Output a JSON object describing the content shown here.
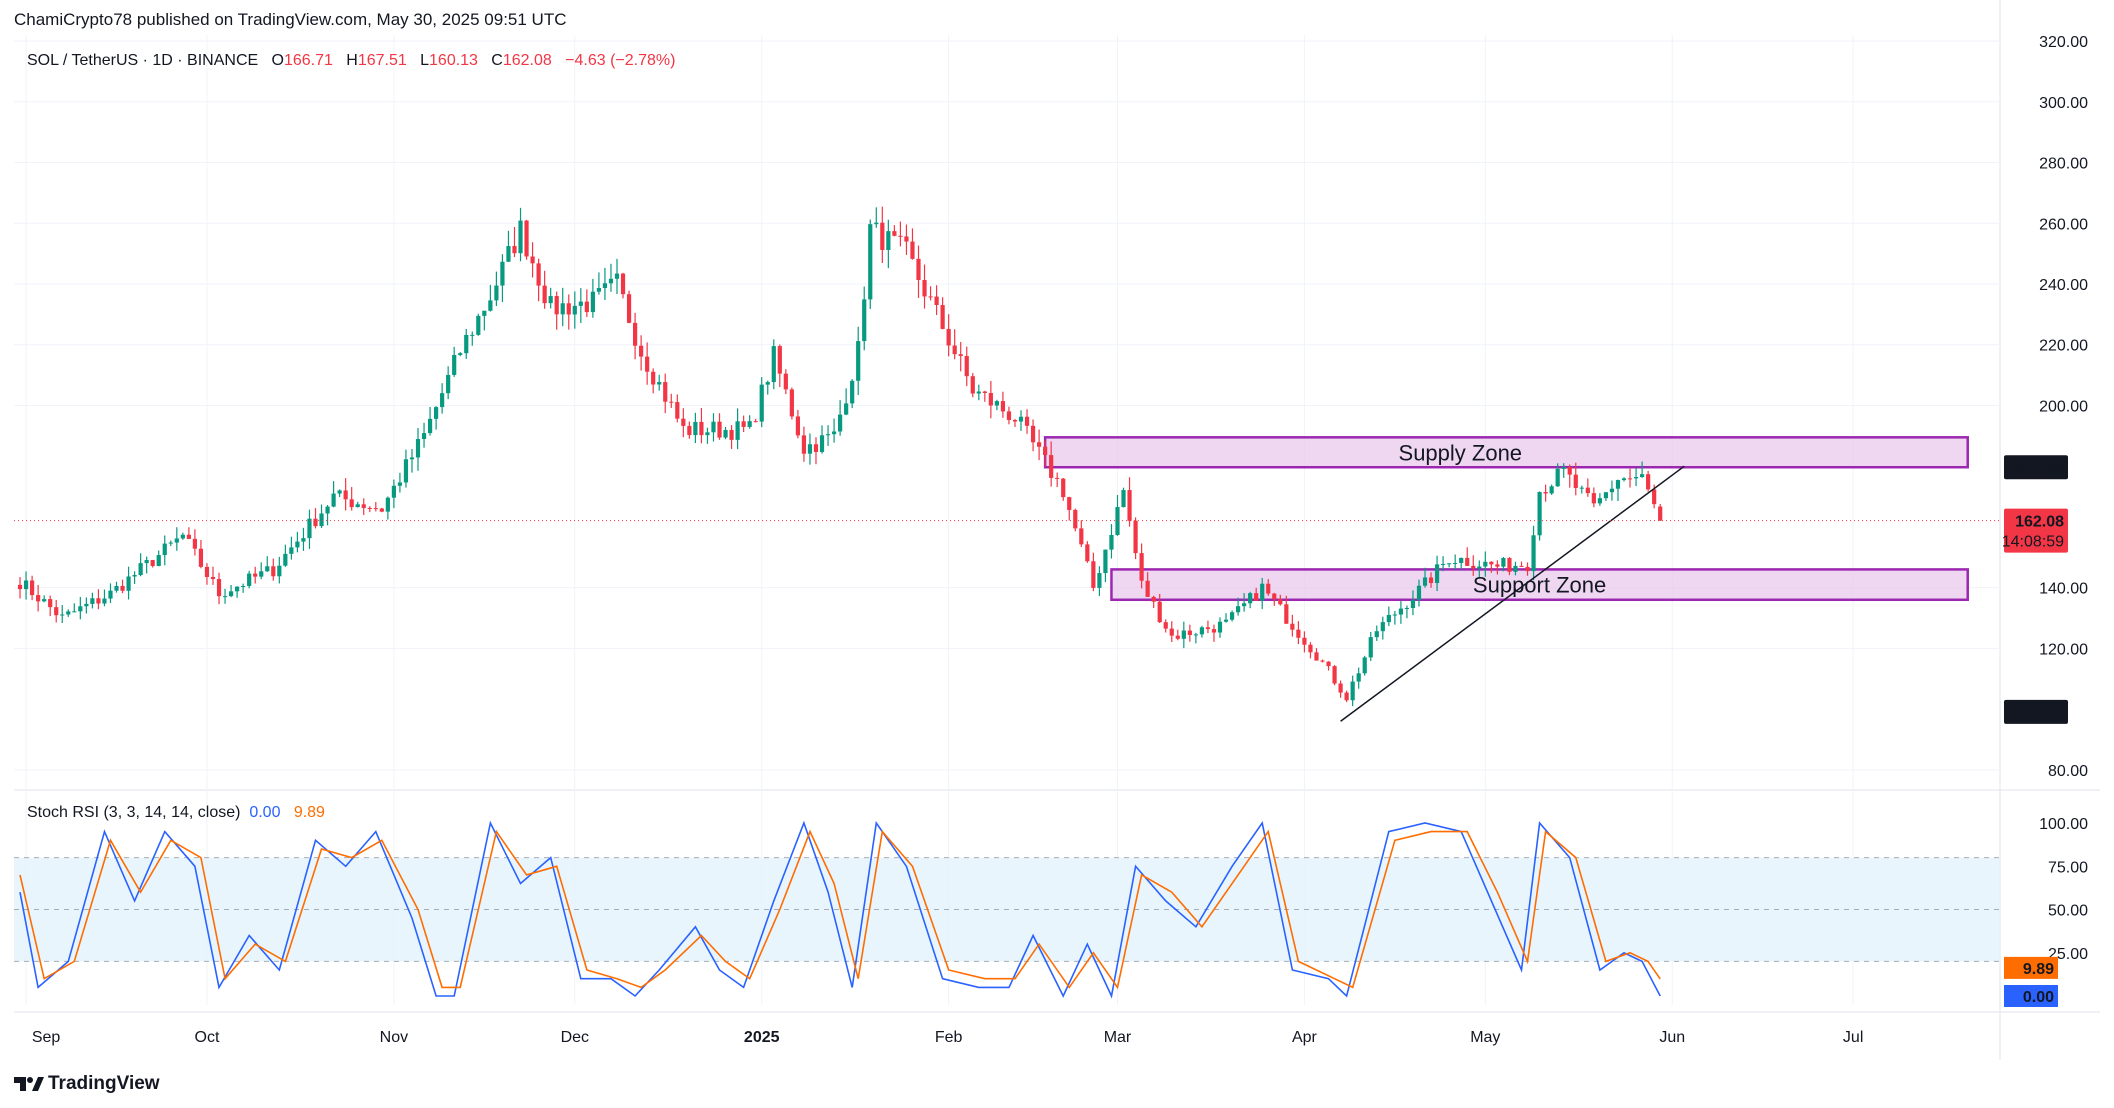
{
  "header": {
    "published_by": "ChamiCrypto78 published on TradingView.com, May 30, 2025 09:51 UTC"
  },
  "legend": {
    "symbol": "SOL / TetherUS · 1D · BINANCE",
    "o_label": "O",
    "o_value": "166.71",
    "h_label": "H",
    "h_value": "167.51",
    "l_label": "L",
    "l_value": "160.13",
    "c_label": "C",
    "c_value": "162.08",
    "change": "−4.63 (−2.78%)"
  },
  "stoch_legend": {
    "name": "Stoch RSI (3, 3, 14, 14, close)",
    "k_value": "0.00",
    "d_value": "9.89"
  },
  "branding": {
    "logo_text": "TradingView",
    "logo_icon": "tradingview-logo-icon"
  },
  "colors": {
    "up": "#089981",
    "down": "#f23645",
    "zone_fill": "#e8c6ec",
    "zone_border": "#9c27b0",
    "k_line": "#2962ff",
    "d_line": "#ff6d00",
    "band_fill": "#e3f2fd"
  },
  "chart_data": [
    {
      "type": "candlestick",
      "title": "SOL / TetherUS · 1D · BINANCE",
      "price_axis_ticks": [
        "320.00",
        "300.00",
        "280.00",
        "260.00",
        "240.00",
        "220.00",
        "200.00",
        "140.00",
        "120.00",
        "80.00"
      ],
      "ylim": [
        75,
        322
      ],
      "x_labels": [
        "Sep",
        "Oct",
        "Nov",
        "Dec",
        "2025",
        "Feb",
        "Mar",
        "Apr",
        "May",
        "Jun",
        "Jul"
      ],
      "price_markers": {
        "supply_top": "179.65",
        "current": "162.08",
        "countdown": "14:08:59",
        "low_marker": "99.10"
      },
      "zones": [
        {
          "name": "Supply Zone",
          "from_date": "2025-02-17",
          "to_date": "2025-07-20",
          "low": 179.65,
          "high": 189.5
        },
        {
          "name": "Support Zone",
          "from_date": "2025-02-28",
          "to_date": "2025-07-20",
          "low": 136,
          "high": 146
        }
      ],
      "trendline": {
        "from": [
          "2025-04-07",
          96
        ],
        "to": [
          "2025-06-03",
          180
        ]
      },
      "closes_keypoints": [
        [
          "2024-08-31",
          142
        ],
        [
          "2024-09-07",
          130
        ],
        [
          "2024-09-15",
          138
        ],
        [
          "2024-09-27",
          157
        ],
        [
          "2024-10-03",
          138
        ],
        [
          "2024-10-12",
          146
        ],
        [
          "2024-10-22",
          170
        ],
        [
          "2024-10-30",
          166
        ],
        [
          "2024-11-06",
          190
        ],
        [
          "2024-11-12",
          218
        ],
        [
          "2024-11-17",
          236
        ],
        [
          "2024-11-22",
          258
        ],
        [
          "2024-11-27",
          232
        ],
        [
          "2024-12-04",
          234
        ],
        [
          "2024-12-08",
          240
        ],
        [
          "2024-12-12",
          218
        ],
        [
          "2024-12-19",
          192
        ],
        [
          "2024-12-24",
          192
        ],
        [
          "2024-12-30",
          192
        ],
        [
          "2025-01-03",
          216
        ],
        [
          "2025-01-08",
          186
        ],
        [
          "2025-01-13",
          190
        ],
        [
          "2025-01-17",
          218
        ],
        [
          "2025-01-19",
          258
        ],
        [
          "2025-01-25",
          250
        ],
        [
          "2025-01-31",
          226
        ],
        [
          "2025-02-05",
          205
        ],
        [
          "2025-02-12",
          196
        ],
        [
          "2025-02-20",
          172
        ],
        [
          "2025-02-25",
          140
        ],
        [
          "2025-03-02",
          172
        ],
        [
          "2025-03-05",
          141
        ],
        [
          "2025-03-10",
          124
        ],
        [
          "2025-03-19",
          128
        ],
        [
          "2025-03-25",
          140
        ],
        [
          "2025-04-03",
          118
        ],
        [
          "2025-04-08",
          104
        ],
        [
          "2025-04-13",
          126
        ],
        [
          "2025-04-21",
          141
        ],
        [
          "2025-04-25",
          150
        ],
        [
          "2025-05-03",
          147
        ],
        [
          "2025-05-08",
          148
        ],
        [
          "2025-05-10",
          172
        ],
        [
          "2025-05-14",
          178
        ],
        [
          "2025-05-19",
          166
        ],
        [
          "2025-05-23",
          176
        ],
        [
          "2025-05-27",
          176
        ],
        [
          "2025-05-30",
          162.08
        ]
      ]
    },
    {
      "type": "line",
      "name": "Stoch RSI (3, 3, 14, 14, close)",
      "axis_ticks": [
        "100.00",
        "75.00",
        "50.00",
        "25.00"
      ],
      "ylim": [
        0,
        100
      ],
      "bands": {
        "upper": 80,
        "middle": 50,
        "lower": 20
      },
      "last_values": {
        "k": "0.00",
        "d": "9.89"
      },
      "series": [
        {
          "name": "K",
          "keypoints": [
            [
              "2024-08-31",
              60
            ],
            [
              "2024-09-03",
              5
            ],
            [
              "2024-09-08",
              20
            ],
            [
              "2024-09-14",
              95
            ],
            [
              "2024-09-19",
              55
            ],
            [
              "2024-09-24",
              95
            ],
            [
              "2024-09-29",
              75
            ],
            [
              "2024-10-03",
              5
            ],
            [
              "2024-10-08",
              35
            ],
            [
              "2024-10-13",
              15
            ],
            [
              "2024-10-19",
              90
            ],
            [
              "2024-10-24",
              75
            ],
            [
              "2024-10-29",
              95
            ],
            [
              "2024-11-04",
              45
            ],
            [
              "2024-11-08",
              0
            ],
            [
              "2024-11-11",
              0
            ],
            [
              "2024-11-17",
              100
            ],
            [
              "2024-11-22",
              65
            ],
            [
              "2024-11-27",
              80
            ],
            [
              "2024-12-02",
              10
            ],
            [
              "2024-12-07",
              10
            ],
            [
              "2024-12-11",
              0
            ],
            [
              "2024-12-15",
              15
            ],
            [
              "2024-12-21",
              40
            ],
            [
              "2024-12-25",
              15
            ],
            [
              "2024-12-29",
              5
            ],
            [
              "2025-01-03",
              55
            ],
            [
              "2025-01-08",
              100
            ],
            [
              "2025-01-12",
              60
            ],
            [
              "2025-01-16",
              5
            ],
            [
              "2025-01-20",
              100
            ],
            [
              "2025-01-25",
              75
            ],
            [
              "2025-01-31",
              10
            ],
            [
              "2025-02-06",
              5
            ],
            [
              "2025-02-11",
              5
            ],
            [
              "2025-02-15",
              35
            ],
            [
              "2025-02-20",
              0
            ],
            [
              "2025-02-24",
              30
            ],
            [
              "2025-02-28",
              0
            ],
            [
              "2025-03-04",
              75
            ],
            [
              "2025-03-09",
              55
            ],
            [
              "2025-03-14",
              40
            ],
            [
              "2025-03-20",
              75
            ],
            [
              "2025-03-25",
              100
            ],
            [
              "2025-03-30",
              15
            ],
            [
              "2025-04-05",
              10
            ],
            [
              "2025-04-08",
              0
            ],
            [
              "2025-04-15",
              95
            ],
            [
              "2025-04-21",
              100
            ],
            [
              "2025-04-27",
              95
            ],
            [
              "2025-05-02",
              55
            ],
            [
              "2025-05-07",
              15
            ],
            [
              "2025-05-10",
              100
            ],
            [
              "2025-05-15",
              80
            ],
            [
              "2025-05-20",
              15
            ],
            [
              "2025-05-24",
              25
            ],
            [
              "2025-05-27",
              20
            ],
            [
              "2025-05-30",
              0
            ]
          ]
        },
        {
          "name": "D",
          "keypoints": [
            [
              "2024-08-31",
              70
            ],
            [
              "2024-09-04",
              10
            ],
            [
              "2024-09-09",
              20
            ],
            [
              "2024-09-15",
              90
            ],
            [
              "2024-09-20",
              60
            ],
            [
              "2024-09-25",
              90
            ],
            [
              "2024-09-30",
              80
            ],
            [
              "2024-10-04",
              10
            ],
            [
              "2024-10-09",
              30
            ],
            [
              "2024-10-14",
              20
            ],
            [
              "2024-10-20",
              85
            ],
            [
              "2024-10-25",
              80
            ],
            [
              "2024-10-30",
              90
            ],
            [
              "2024-11-05",
              50
            ],
            [
              "2024-11-09",
              5
            ],
            [
              "2024-11-12",
              5
            ],
            [
              "2024-11-18",
              95
            ],
            [
              "2024-11-23",
              70
            ],
            [
              "2024-11-28",
              75
            ],
            [
              "2024-12-03",
              15
            ],
            [
              "2024-12-08",
              10
            ],
            [
              "2024-12-12",
              5
            ],
            [
              "2024-12-16",
              15
            ],
            [
              "2024-12-22",
              35
            ],
            [
              "2024-12-26",
              20
            ],
            [
              "2024-12-30",
              10
            ],
            [
              "2025-01-04",
              50
            ],
            [
              "2025-01-09",
              95
            ],
            [
              "2025-01-13",
              65
            ],
            [
              "2025-01-17",
              10
            ],
            [
              "2025-01-21",
              95
            ],
            [
              "2025-01-26",
              75
            ],
            [
              "2025-02-01",
              15
            ],
            [
              "2025-02-07",
              10
            ],
            [
              "2025-02-12",
              10
            ],
            [
              "2025-02-16",
              30
            ],
            [
              "2025-02-21",
              5
            ],
            [
              "2025-02-25",
              25
            ],
            [
              "2025-03-01",
              5
            ],
            [
              "2025-03-05",
              70
            ],
            [
              "2025-03-10",
              60
            ],
            [
              "2025-03-15",
              40
            ],
            [
              "2025-03-21",
              70
            ],
            [
              "2025-03-26",
              95
            ],
            [
              "2025-03-31",
              20
            ],
            [
              "2025-04-06",
              10
            ],
            [
              "2025-04-09",
              5
            ],
            [
              "2025-04-16",
              90
            ],
            [
              "2025-04-22",
              95
            ],
            [
              "2025-04-28",
              95
            ],
            [
              "2025-05-03",
              60
            ],
            [
              "2025-05-08",
              20
            ],
            [
              "2025-05-11",
              95
            ],
            [
              "2025-05-16",
              80
            ],
            [
              "2025-05-21",
              20
            ],
            [
              "2025-05-25",
              25
            ],
            [
              "2025-05-28",
              20
            ],
            [
              "2025-05-30",
              9.89
            ]
          ]
        }
      ]
    }
  ]
}
